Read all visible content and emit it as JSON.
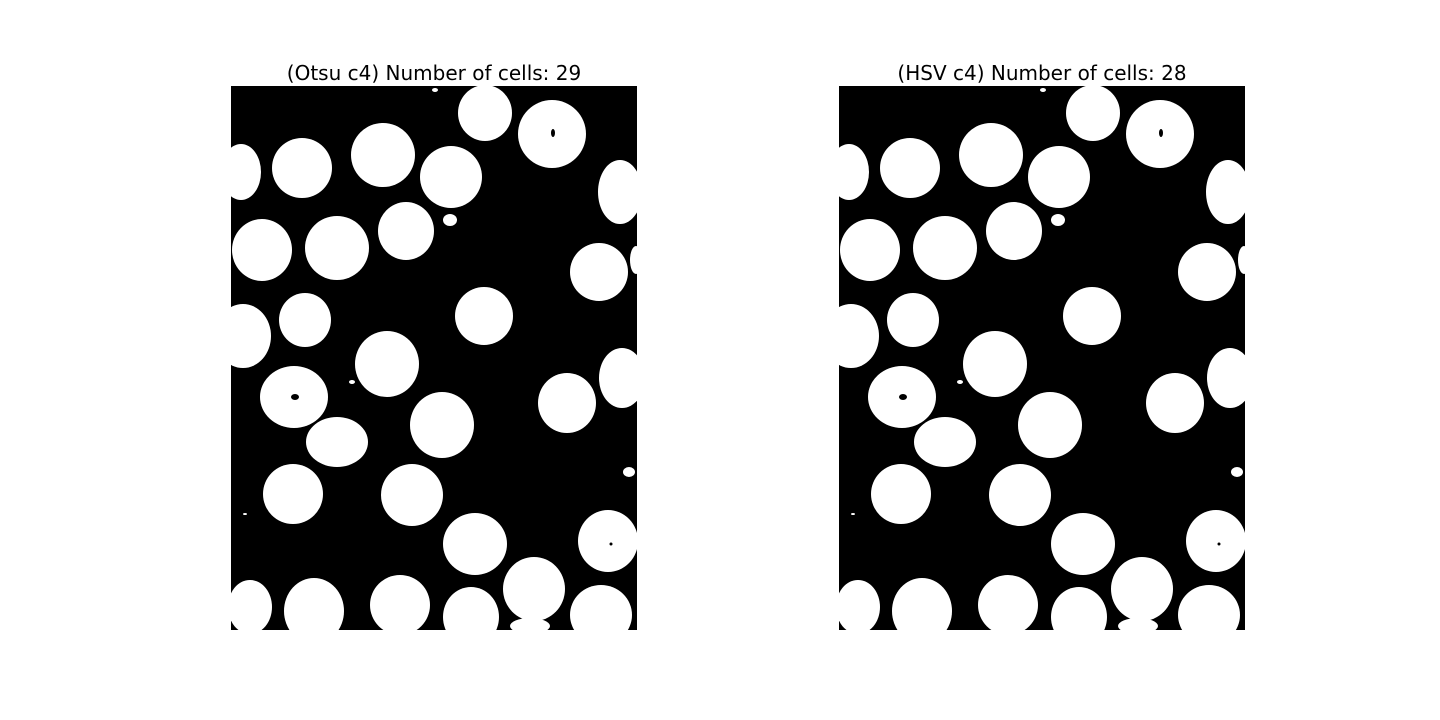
{
  "figure": {
    "panels": [
      {
        "title": "(Otsu c4) Number of cells: 29"
      },
      {
        "title": "(HSV c4) Number of cells: 28"
      }
    ]
  },
  "colors": {
    "background": "#ffffff",
    "mask_background": "#000000",
    "cell_foreground": "#ffffff"
  }
}
